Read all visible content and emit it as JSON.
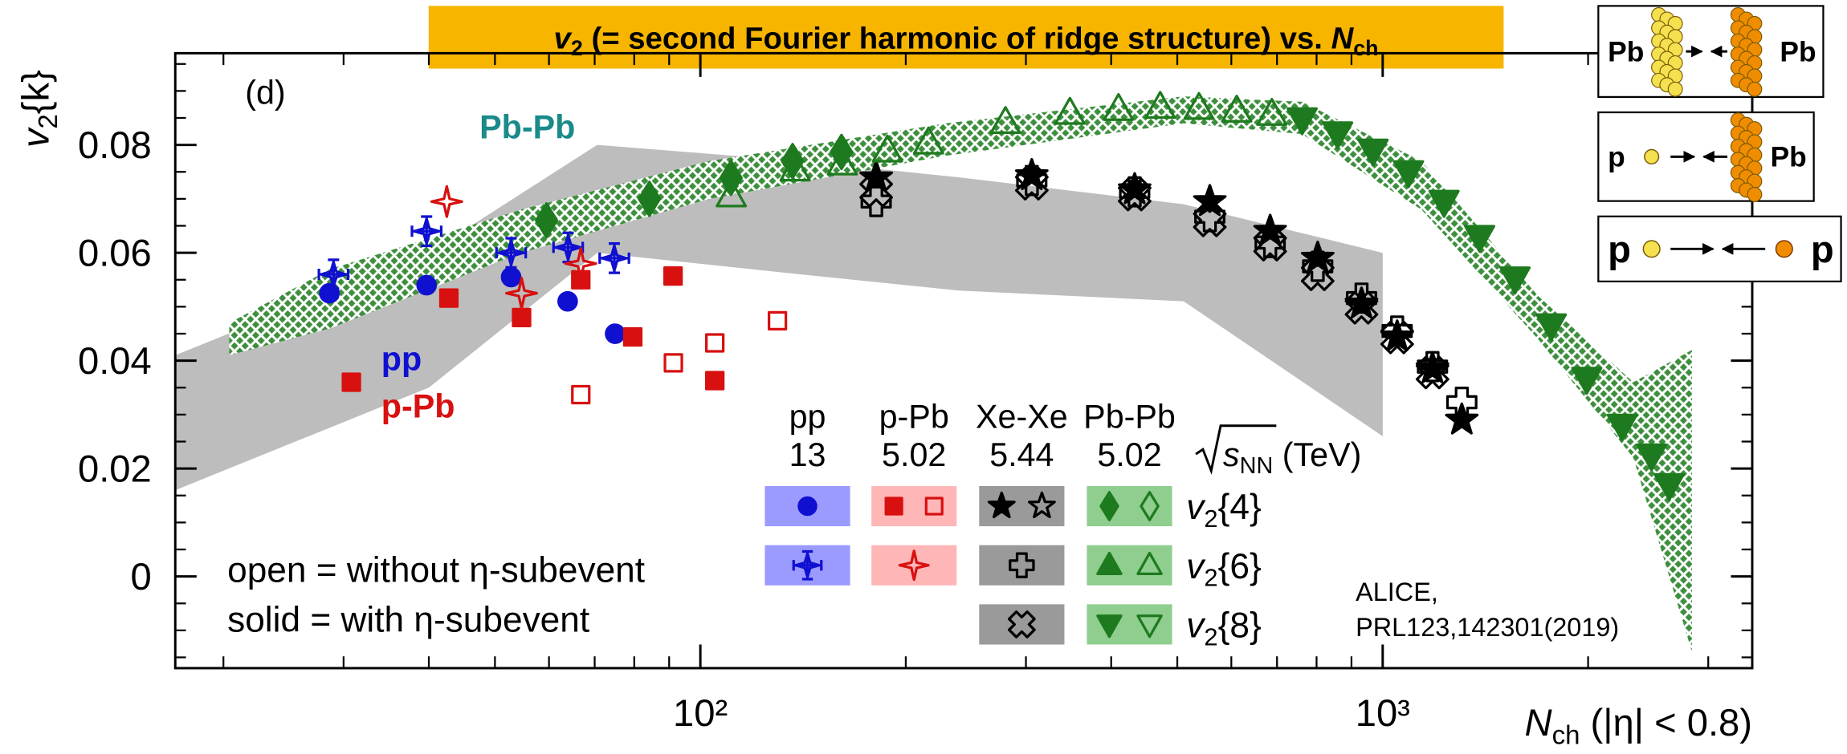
{
  "chart_data": {
    "type": "scatter",
    "title": {
      "v": "v",
      "v_sub": "2",
      "text": " (= second Fourier harmonic of ridge structure) vs. ",
      "n": "N",
      "n_sub": "ch"
    },
    "title_box_color": "#f7b500",
    "ylabel": {
      "v": "v",
      "sub": "2",
      "k": "{k}"
    },
    "xlabel": {
      "n": "N",
      "sub": "ch",
      "text": " (|η| < 0.8)"
    },
    "xscale": "log",
    "xlim": [
      17,
      3480
    ],
    "ylim": [
      -0.017,
      0.097
    ],
    "xticks": [
      {
        "value": 100,
        "label": "10²"
      },
      {
        "value": 1000,
        "label": "10³"
      }
    ],
    "xminorticks": [
      20,
      30,
      40,
      50,
      60,
      70,
      80,
      90,
      200,
      300,
      400,
      500,
      600,
      700,
      800,
      900,
      2000,
      3000
    ],
    "yticks": [
      0,
      0.02,
      0.04,
      0.06,
      0.08
    ],
    "yminorticks": [
      -0.015,
      -0.01,
      -0.005,
      0.005,
      0.01,
      0.015,
      0.025,
      0.03,
      0.035,
      0.045,
      0.05,
      0.055,
      0.065,
      0.07,
      0.075,
      0.085,
      0.09,
      0.095
    ],
    "panel_label": "(d)",
    "annotations": [
      {
        "text": "Pb-Pb",
        "color": "#1a8a8a"
      },
      {
        "text": "pp",
        "color": "#1010d0"
      },
      {
        "text": "p-Pb",
        "color": "#d81010"
      }
    ],
    "notes": [
      "open = without η-subevent",
      "solid = with η-subevent"
    ],
    "reference": [
      "ALICE,",
      "PRL123,142301(2019)"
    ],
    "bands": [
      {
        "color": "#bdbdbd",
        "pattern": "solid",
        "x": [
          17,
          40,
          70.6,
          140,
          239,
          511,
          1000
        ],
        "upper": [
          0.041,
          0.06,
          0.08,
          0.077,
          0.074,
          0.069,
          0.06
        ],
        "lower": [
          0.016,
          0.035,
          0.06,
          0.056,
          0.053,
          0.051,
          0.026
        ]
      },
      {
        "color": "#3d8f3d",
        "pattern": "crosshatch",
        "x": [
          20.4,
          28.7,
          54.6,
          103,
          229,
          511,
          762,
          1140,
          1690,
          2330,
          2840
        ],
        "upper": [
          0.047,
          0.057,
          0.068,
          0.077,
          0.084,
          0.089,
          0.088,
          0.077,
          0.052,
          0.036,
          0.042
        ],
        "lower": [
          0.041,
          0.046,
          0.06,
          0.07,
          0.078,
          0.084,
          0.082,
          0.068,
          0.044,
          0.022,
          -0.014
        ]
      }
    ],
    "series": [
      {
        "color": "#1010d0",
        "marker": "circle",
        "filled": true,
        "x": [
          28.6,
          39.7,
          52.8,
          63.9,
          75.0
        ],
        "values": [
          0.0525,
          0.054,
          0.0555,
          0.051,
          0.045
        ]
      },
      {
        "color": "#1010d0",
        "marker": "box-star",
        "filled": false,
        "x": [
          29.0,
          39.7,
          52.8,
          64.0,
          74.8
        ],
        "values": [
          0.056,
          0.064,
          0.06,
          0.061,
          0.059
        ]
      },
      {
        "color": "#d81010",
        "marker": "square",
        "filled": true,
        "x": [
          30.8,
          42.8,
          54.7,
          66.8,
          79.6,
          91.2,
          105
        ],
        "values": [
          0.036,
          0.0516,
          0.048,
          0.055,
          0.0444,
          0.0557,
          0.0363
        ]
      },
      {
        "color": "#d81010",
        "marker": "square",
        "filled": false,
        "x": [
          66.8,
          91.3,
          105,
          129.7
        ],
        "values": [
          0.0337,
          0.0396,
          0.0433,
          0.0474
        ]
      },
      {
        "color": "#d81010",
        "marker": "star4",
        "filled": false,
        "x": [
          42.5,
          54.7,
          66.8
        ],
        "values": [
          0.0695,
          0.0525,
          0.058
        ]
      },
      {
        "color": "#000000",
        "marker": "star5",
        "filled": true,
        "x": [
          181,
          306,
          433,
          558,
          684,
          803,
          931,
          1050,
          1183,
          1306
        ],
        "values": [
          0.0739,
          0.0743,
          0.0717,
          0.0695,
          0.064,
          0.059,
          0.0505,
          0.0444,
          0.0385,
          0.029
        ]
      },
      {
        "color": "#000000",
        "marker": "cross",
        "filled": false,
        "x": [
          181,
          306,
          433,
          558,
          684,
          803,
          931,
          1050,
          1183,
          1306
        ],
        "values": [
          0.0695,
          0.0734,
          0.0713,
          0.0667,
          0.0619,
          0.0575,
          0.0516,
          0.0455,
          0.0389,
          0.0323
        ]
      },
      {
        "color": "#000000",
        "marker": "xcross",
        "filled": false,
        "x": [
          181,
          306,
          433,
          558,
          684,
          803,
          931,
          1050,
          1183
        ],
        "values": [
          0.0715,
          0.0728,
          0.0708,
          0.066,
          0.0615,
          0.056,
          0.0498,
          0.0443,
          0.0378
        ]
      },
      {
        "color": "#1e7a1e",
        "marker": "diamond",
        "filled": true,
        "x": [
          59.5,
          84.2,
          110.9,
          136.5,
          161
        ],
        "values": [
          0.066,
          0.07,
          0.0739,
          0.077,
          0.0787
        ]
      },
      {
        "color": "#1e7a1e",
        "marker": "triup",
        "filled": false,
        "x": [
          111,
          137.7,
          161.5,
          188,
          216,
          280,
          348,
          410,
          472,
          538,
          611,
          688
        ],
        "values": [
          0.0706,
          0.0754,
          0.0765,
          0.0789,
          0.0804,
          0.0842,
          0.0859,
          0.0866,
          0.087,
          0.0868,
          0.0863,
          0.0857
        ]
      },
      {
        "color": "#1e7a1e",
        "marker": "tridown",
        "filled": true,
        "x": [
          762,
          859,
          968,
          1091,
          1230,
          1387,
          1563,
          1766,
          1991,
          2244,
          2478,
          2630
        ],
        "values": [
          0.0848,
          0.0822,
          0.079,
          0.075,
          0.0695,
          0.063,
          0.0553,
          0.0466,
          0.0367,
          0.028,
          0.0225,
          0.017
        ]
      }
    ],
    "legend": {
      "columns": [
        {
          "system": "pp",
          "energy": "13",
          "color": "#9a9aff"
        },
        {
          "system": "p-Pb",
          "energy": "5.02",
          "color": "#ffb6b6"
        },
        {
          "system": "Xe-Xe",
          "energy": "5.44",
          "color": "#9a9a9a"
        },
        {
          "system": "Pb-Pb",
          "energy": "5.02",
          "color": "#8fce8f"
        }
      ],
      "energy_label": {
        "s": "s",
        "sub": "NN",
        "unit": " (TeV)"
      },
      "rows": [
        {
          "v": "v",
          "sub": "2",
          "k": "{4}"
        },
        {
          "v": "v",
          "sub": "2",
          "k": "{6}"
        },
        {
          "v": "v",
          "sub": "2",
          "k": "{8}"
        }
      ]
    },
    "collisions": [
      {
        "left": "Pb",
        "right": "Pb"
      },
      {
        "left": "p",
        "right": "Pb"
      },
      {
        "left": "p",
        "right": "p"
      }
    ]
  }
}
